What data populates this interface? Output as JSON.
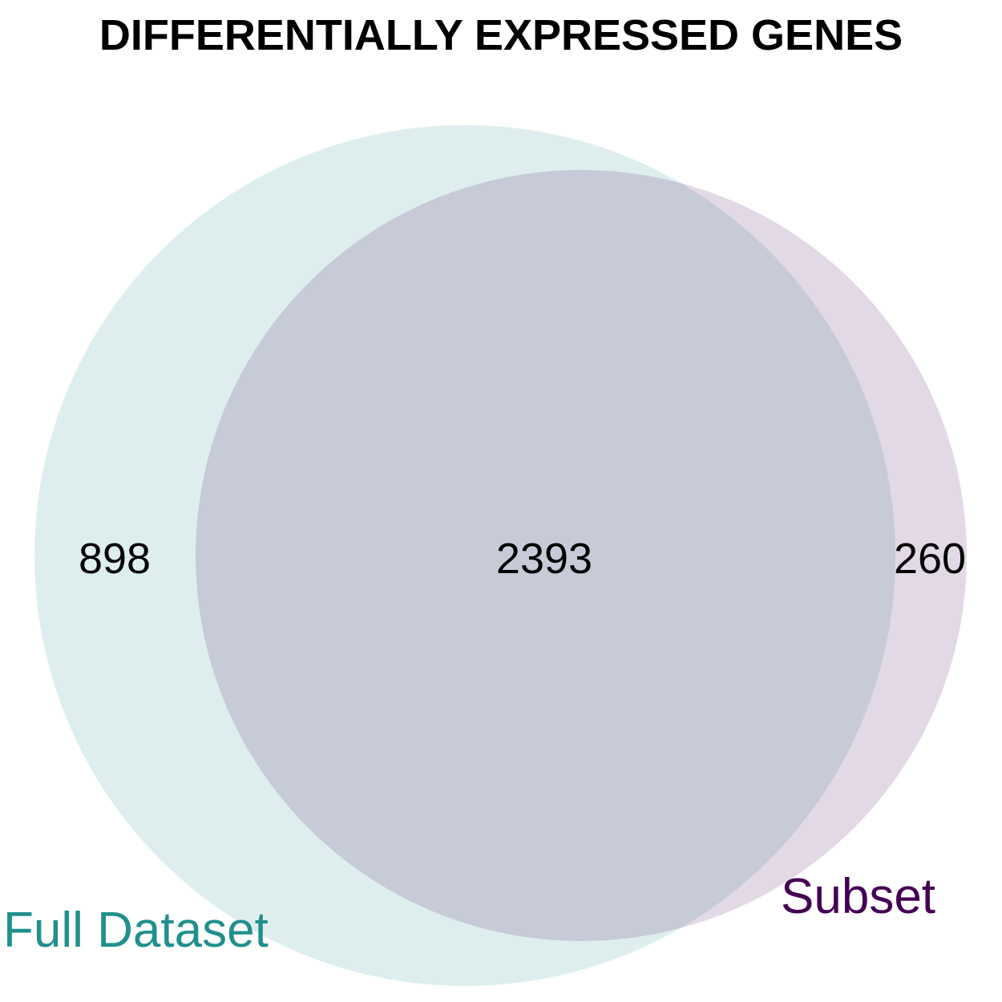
{
  "chart_data": {
    "type": "venn",
    "title": "DIFFERENTIALLY EXPRESSED GENES",
    "sets": [
      {
        "name": "Full Dataset",
        "only_count": "898",
        "label_color": "#21908C",
        "fill_color": "#21908C"
      },
      {
        "name": "Subset",
        "only_count": "260",
        "label_color": "#440154",
        "fill_color": "#440154"
      }
    ],
    "intersection_count": "2393"
  }
}
